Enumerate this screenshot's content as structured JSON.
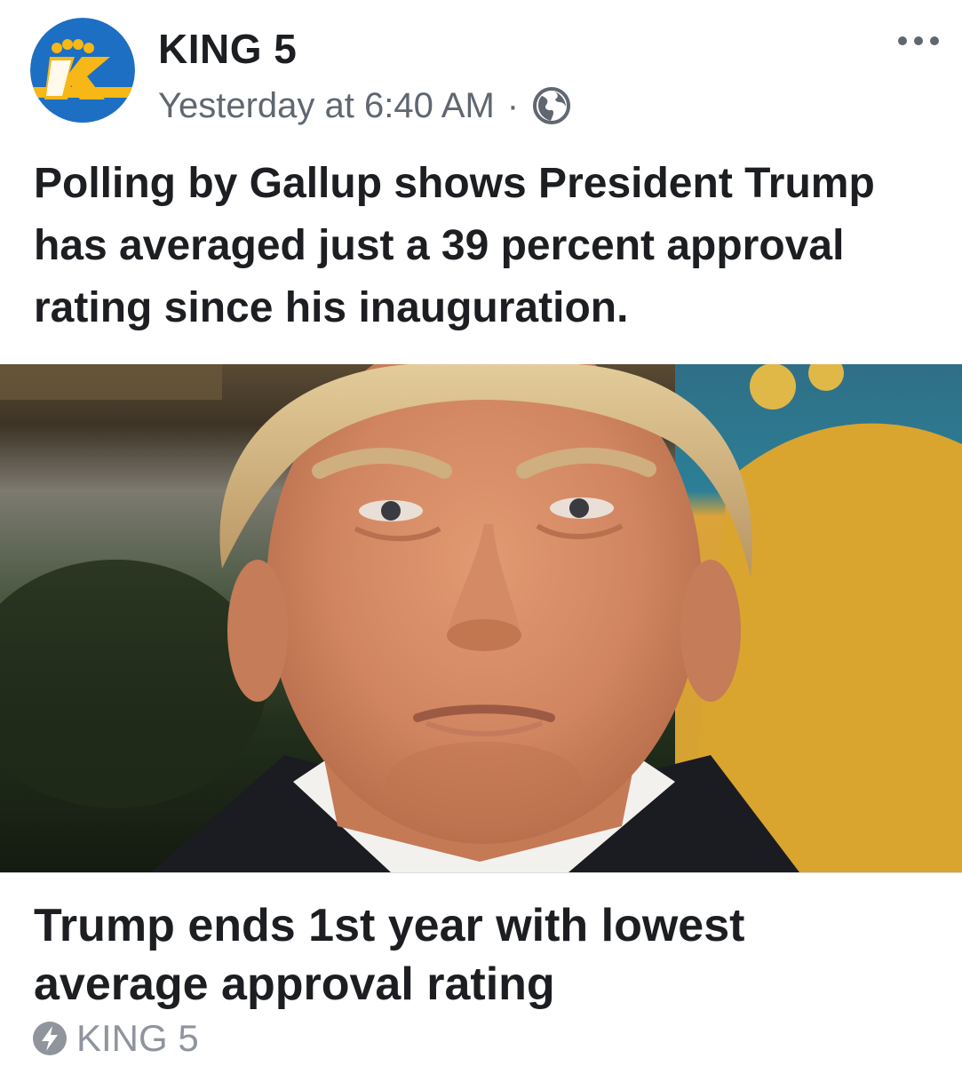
{
  "header": {
    "page_name": "KING 5",
    "timestamp": "Yesterday at 6:40 AM",
    "separator": "·",
    "privacy_icon": "globe-icon",
    "more_icon": "more-horizontal-icon",
    "avatar_logo": "king5-logo",
    "avatar_logo_text": "K"
  },
  "post": {
    "text": "Polling by Gallup shows President Trump has averaged just a 39 percent approval rating since his inauguration."
  },
  "link_preview": {
    "title": "Trump ends 1st year with lowest average approval rating",
    "source": "KING 5",
    "source_icon": "instant-article-bolt-icon"
  },
  "colors": {
    "logo_blue": "#1c6fc2",
    "logo_yellow": "#f6b717",
    "text_primary": "#1c1e21",
    "text_secondary": "#606770",
    "text_muted": "#90949c"
  }
}
